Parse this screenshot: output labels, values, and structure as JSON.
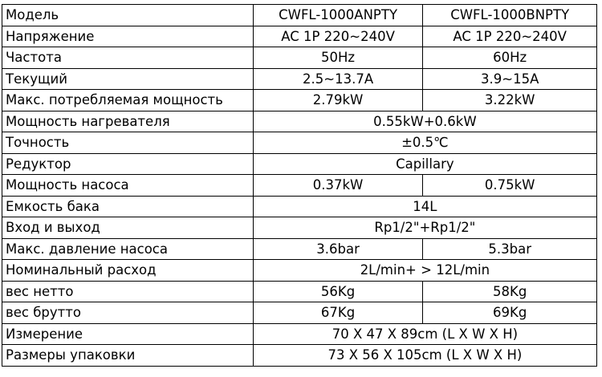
{
  "rows": [
    {
      "label": "Модель",
      "a": "CWFL-1000ANPTY",
      "b": "CWFL-1000BNPTY"
    },
    {
      "label": "Напряжение",
      "a": "AC 1P 220~240V",
      "b": "AC 1P 220~240V"
    },
    {
      "label": "Частота",
      "a": "50Hz",
      "b": "60Hz"
    },
    {
      "label": "Текущий",
      "a": "2.5~13.7A",
      "b": "3.9~15A"
    },
    {
      "label": "Макс. потребляемая мощность",
      "a": "2.79kW",
      "b": "3.22kW"
    },
    {
      "label": "Мощность нагревателя",
      "both": "0.55kW+0.6kW"
    },
    {
      "label": "Точность",
      "both": "±0.5℃"
    },
    {
      "label": "Редуктор",
      "both": "Capillary"
    },
    {
      "label": "Мощность насоса",
      "a": "0.37kW",
      "b": "0.75kW"
    },
    {
      "label": "Емкость бака",
      "both": "14L"
    },
    {
      "label": "Вход и выход",
      "both": "Rp1/2\"+Rp1/2\""
    },
    {
      "label": "Макс. давление насоса",
      "a": "3.6bar",
      "b": "5.3bar"
    },
    {
      "label": "Номинальный расход",
      "both": "2L/min+ > 12L/min"
    },
    {
      "label": "вес нетто",
      "a": "56Kg",
      "b": "58Kg"
    },
    {
      "label": "вес брутто",
      "a": "67Kg",
      "b": "69Kg"
    },
    {
      "label": "Измерение",
      "both": "70 X 47 X 89cm (L X W X H)"
    },
    {
      "label": "Размеры упаковки",
      "both": "73 X 56 X 105cm (L X W X H)"
    }
  ]
}
